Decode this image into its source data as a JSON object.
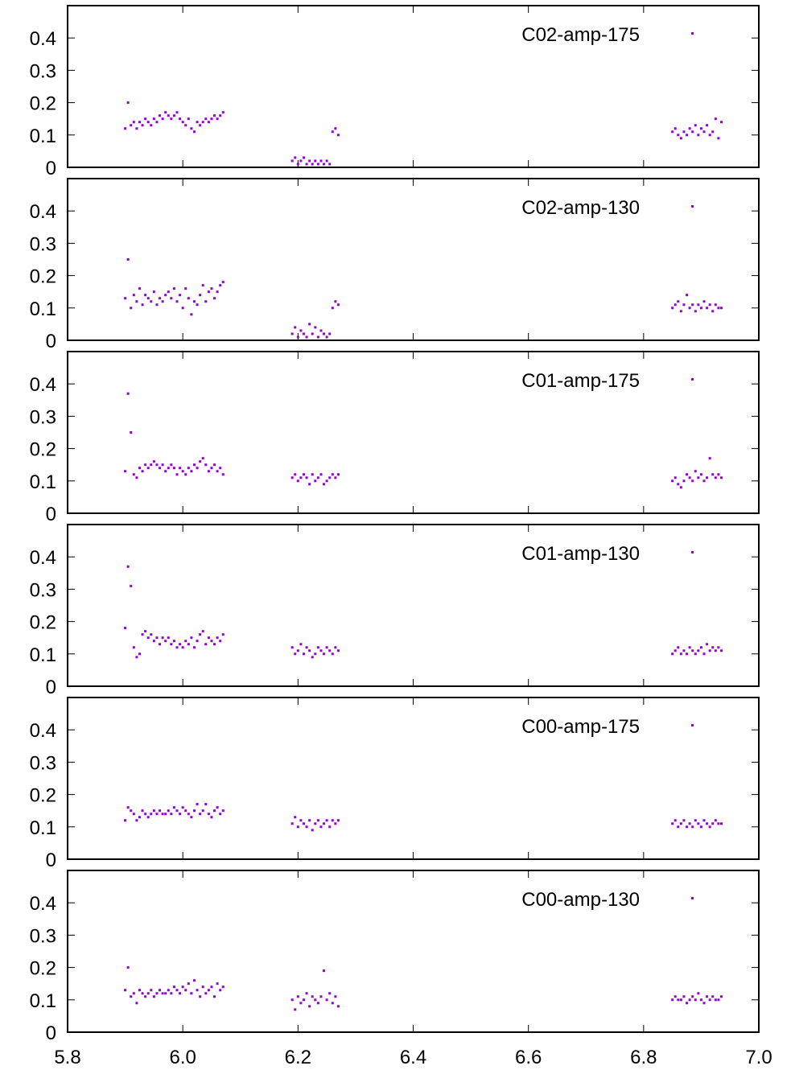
{
  "chart_data": [
    {
      "type": "scatter",
      "legend": "C02-amp-175",
      "legend_position": "top-right",
      "color": "#9400d3",
      "xlim": [
        5.8,
        7.0
      ],
      "ylim": [
        0,
        0.5
      ],
      "y_ticks": [
        "0",
        "0.1",
        "0.2",
        "0.3",
        "0.4"
      ],
      "x": [
        5.9,
        5.905,
        5.91,
        5.915,
        5.92,
        5.925,
        5.93,
        5.935,
        5.94,
        5.945,
        5.95,
        5.955,
        5.96,
        5.965,
        5.97,
        5.975,
        5.98,
        5.985,
        5.99,
        5.995,
        6.0,
        6.005,
        6.01,
        6.015,
        6.02,
        6.025,
        6.03,
        6.035,
        6.04,
        6.045,
        6.05,
        6.055,
        6.06,
        6.065,
        6.07,
        6.19,
        6.195,
        6.2,
        6.205,
        6.21,
        6.215,
        6.22,
        6.225,
        6.23,
        6.235,
        6.24,
        6.245,
        6.25,
        6.255,
        6.26,
        6.265,
        6.27,
        6.85,
        6.855,
        6.86,
        6.865,
        6.87,
        6.875,
        6.88,
        6.885,
        6.89,
        6.895,
        6.9,
        6.905,
        6.91,
        6.915,
        6.92,
        6.925,
        6.93,
        6.935
      ],
      "y": [
        0.12,
        0.2,
        0.13,
        0.14,
        0.12,
        0.14,
        0.13,
        0.15,
        0.14,
        0.13,
        0.15,
        0.14,
        0.16,
        0.15,
        0.17,
        0.16,
        0.15,
        0.16,
        0.17,
        0.15,
        0.14,
        0.13,
        0.15,
        0.12,
        0.11,
        0.14,
        0.13,
        0.14,
        0.15,
        0.14,
        0.15,
        0.16,
        0.15,
        0.16,
        0.17,
        0.02,
        0.03,
        0.01,
        0.02,
        0.03,
        0.01,
        0.02,
        0.01,
        0.02,
        0.01,
        0.02,
        0.01,
        0.02,
        0.01,
        0.11,
        0.12,
        0.1,
        0.11,
        0.12,
        0.1,
        0.09,
        0.11,
        0.1,
        0.12,
        0.11,
        0.13,
        0.1,
        0.12,
        0.11,
        0.13,
        0.1,
        0.11,
        0.15,
        0.09,
        0.14
      ]
    },
    {
      "type": "scatter",
      "legend": "C02-amp-130",
      "legend_position": "top-right",
      "color": "#9400d3",
      "xlim": [
        5.8,
        7.0
      ],
      "ylim": [
        0,
        0.5
      ],
      "y_ticks": [
        "0",
        "0.1",
        "0.2",
        "0.3",
        "0.4"
      ],
      "x": [
        5.9,
        5.905,
        5.91,
        5.915,
        5.92,
        5.925,
        5.93,
        5.935,
        5.94,
        5.945,
        5.95,
        5.955,
        5.96,
        5.965,
        5.97,
        5.975,
        5.98,
        5.985,
        5.99,
        5.995,
        6.0,
        6.005,
        6.01,
        6.015,
        6.02,
        6.025,
        6.03,
        6.035,
        6.04,
        6.045,
        6.05,
        6.055,
        6.06,
        6.065,
        6.07,
        6.19,
        6.195,
        6.2,
        6.205,
        6.21,
        6.215,
        6.22,
        6.225,
        6.23,
        6.235,
        6.24,
        6.245,
        6.25,
        6.255,
        6.26,
        6.265,
        6.27,
        6.85,
        6.855,
        6.86,
        6.865,
        6.87,
        6.875,
        6.88,
        6.885,
        6.89,
        6.895,
        6.9,
        6.905,
        6.91,
        6.915,
        6.92,
        6.925,
        6.93,
        6.935
      ],
      "y": [
        0.13,
        0.25,
        0.1,
        0.14,
        0.12,
        0.16,
        0.11,
        0.14,
        0.13,
        0.12,
        0.15,
        0.11,
        0.13,
        0.12,
        0.14,
        0.15,
        0.13,
        0.16,
        0.12,
        0.14,
        0.1,
        0.16,
        0.13,
        0.08,
        0.12,
        0.11,
        0.14,
        0.17,
        0.12,
        0.15,
        0.16,
        0.13,
        0.15,
        0.17,
        0.18,
        0.02,
        0.04,
        0.01,
        0.03,
        0.02,
        0.01,
        0.05,
        0.02,
        0.04,
        0.01,
        0.03,
        0.02,
        0.01,
        0.02,
        0.1,
        0.12,
        0.11,
        0.1,
        0.11,
        0.12,
        0.09,
        0.11,
        0.14,
        0.1,
        0.11,
        0.09,
        0.11,
        0.1,
        0.12,
        0.1,
        0.11,
        0.09,
        0.11,
        0.1,
        0.1
      ]
    },
    {
      "type": "scatter",
      "legend": "C01-amp-175",
      "legend_position": "top-right",
      "color": "#9400d3",
      "xlim": [
        5.8,
        7.0
      ],
      "ylim": [
        0,
        0.5
      ],
      "y_ticks": [
        "0",
        "0.1",
        "0.2",
        "0.3",
        "0.4"
      ],
      "x": [
        5.9,
        5.905,
        5.91,
        5.915,
        5.92,
        5.925,
        5.93,
        5.935,
        5.94,
        5.945,
        5.95,
        5.955,
        5.96,
        5.965,
        5.97,
        5.975,
        5.98,
        5.985,
        5.99,
        5.995,
        6.0,
        6.005,
        6.01,
        6.015,
        6.02,
        6.025,
        6.03,
        6.035,
        6.04,
        6.045,
        6.05,
        6.055,
        6.06,
        6.065,
        6.07,
        6.19,
        6.195,
        6.2,
        6.205,
        6.21,
        6.215,
        6.22,
        6.225,
        6.23,
        6.235,
        6.24,
        6.245,
        6.25,
        6.255,
        6.26,
        6.265,
        6.27,
        6.85,
        6.855,
        6.86,
        6.865,
        6.87,
        6.875,
        6.88,
        6.885,
        6.89,
        6.895,
        6.9,
        6.905,
        6.91,
        6.915,
        6.92,
        6.925,
        6.93,
        6.935
      ],
      "y": [
        0.13,
        0.37,
        0.25,
        0.12,
        0.11,
        0.14,
        0.13,
        0.15,
        0.14,
        0.15,
        0.16,
        0.15,
        0.14,
        0.15,
        0.13,
        0.14,
        0.15,
        0.14,
        0.12,
        0.14,
        0.13,
        0.12,
        0.14,
        0.13,
        0.15,
        0.14,
        0.16,
        0.17,
        0.15,
        0.13,
        0.14,
        0.15,
        0.13,
        0.14,
        0.12,
        0.11,
        0.12,
        0.1,
        0.11,
        0.12,
        0.11,
        0.09,
        0.12,
        0.1,
        0.11,
        0.12,
        0.09,
        0.1,
        0.11,
        0.12,
        0.11,
        0.12,
        0.1,
        0.11,
        0.09,
        0.08,
        0.1,
        0.12,
        0.11,
        0.1,
        0.13,
        0.11,
        0.12,
        0.1,
        0.11,
        0.17,
        0.12,
        0.11,
        0.12,
        0.11
      ]
    },
    {
      "type": "scatter",
      "legend": "C01-amp-130",
      "legend_position": "top-right",
      "color": "#9400d3",
      "xlim": [
        5.8,
        7.0
      ],
      "ylim": [
        0,
        0.5
      ],
      "y_ticks": [
        "0",
        "0.1",
        "0.2",
        "0.3",
        "0.4"
      ],
      "x": [
        5.9,
        5.905,
        5.91,
        5.915,
        5.92,
        5.925,
        5.93,
        5.935,
        5.94,
        5.945,
        5.95,
        5.955,
        5.96,
        5.965,
        5.97,
        5.975,
        5.98,
        5.985,
        5.99,
        5.995,
        6.0,
        6.005,
        6.01,
        6.015,
        6.02,
        6.025,
        6.03,
        6.035,
        6.04,
        6.045,
        6.05,
        6.055,
        6.06,
        6.065,
        6.07,
        6.19,
        6.195,
        6.2,
        6.205,
        6.21,
        6.215,
        6.22,
        6.225,
        6.23,
        6.235,
        6.24,
        6.245,
        6.25,
        6.255,
        6.26,
        6.265,
        6.27,
        6.85,
        6.855,
        6.86,
        6.865,
        6.87,
        6.875,
        6.88,
        6.885,
        6.89,
        6.895,
        6.9,
        6.905,
        6.91,
        6.915,
        6.92,
        6.925,
        6.93,
        6.935
      ],
      "y": [
        0.18,
        0.37,
        0.31,
        0.12,
        0.09,
        0.1,
        0.16,
        0.17,
        0.15,
        0.16,
        0.14,
        0.15,
        0.13,
        0.15,
        0.14,
        0.15,
        0.13,
        0.14,
        0.12,
        0.13,
        0.12,
        0.14,
        0.13,
        0.15,
        0.12,
        0.14,
        0.16,
        0.17,
        0.13,
        0.15,
        0.14,
        0.13,
        0.15,
        0.14,
        0.16,
        0.12,
        0.1,
        0.11,
        0.13,
        0.1,
        0.12,
        0.11,
        0.09,
        0.1,
        0.12,
        0.11,
        0.1,
        0.12,
        0.11,
        0.1,
        0.12,
        0.11,
        0.1,
        0.11,
        0.12,
        0.1,
        0.11,
        0.1,
        0.12,
        0.11,
        0.1,
        0.11,
        0.12,
        0.1,
        0.13,
        0.11,
        0.12,
        0.11,
        0.12,
        0.11
      ]
    },
    {
      "type": "scatter",
      "legend": "C00-amp-175",
      "legend_position": "top-right",
      "color": "#9400d3",
      "xlim": [
        5.8,
        7.0
      ],
      "ylim": [
        0,
        0.5
      ],
      "y_ticks": [
        "0",
        "0.1",
        "0.2",
        "0.3",
        "0.4"
      ],
      "x": [
        5.9,
        5.905,
        5.91,
        5.915,
        5.92,
        5.925,
        5.93,
        5.935,
        5.94,
        5.945,
        5.95,
        5.955,
        5.96,
        5.965,
        5.97,
        5.975,
        5.98,
        5.985,
        5.99,
        5.995,
        6.0,
        6.005,
        6.01,
        6.015,
        6.02,
        6.025,
        6.03,
        6.035,
        6.04,
        6.045,
        6.05,
        6.055,
        6.06,
        6.065,
        6.07,
        6.19,
        6.195,
        6.2,
        6.205,
        6.21,
        6.215,
        6.22,
        6.225,
        6.23,
        6.235,
        6.24,
        6.245,
        6.25,
        6.255,
        6.26,
        6.265,
        6.27,
        6.85,
        6.855,
        6.86,
        6.865,
        6.87,
        6.875,
        6.88,
        6.885,
        6.89,
        6.895,
        6.9,
        6.905,
        6.91,
        6.915,
        6.92,
        6.925,
        6.93,
        6.935
      ],
      "y": [
        0.12,
        0.16,
        0.15,
        0.14,
        0.12,
        0.13,
        0.15,
        0.14,
        0.13,
        0.14,
        0.15,
        0.14,
        0.15,
        0.14,
        0.14,
        0.15,
        0.14,
        0.16,
        0.15,
        0.14,
        0.16,
        0.15,
        0.14,
        0.13,
        0.15,
        0.17,
        0.14,
        0.15,
        0.17,
        0.14,
        0.13,
        0.15,
        0.16,
        0.14,
        0.15,
        0.11,
        0.13,
        0.1,
        0.12,
        0.11,
        0.1,
        0.12,
        0.09,
        0.11,
        0.12,
        0.1,
        0.11,
        0.12,
        0.1,
        0.12,
        0.11,
        0.12,
        0.11,
        0.12,
        0.1,
        0.11,
        0.12,
        0.1,
        0.11,
        0.1,
        0.12,
        0.11,
        0.1,
        0.12,
        0.11,
        0.1,
        0.11,
        0.12,
        0.11,
        0.11
      ]
    },
    {
      "type": "scatter",
      "legend": "C00-amp-130",
      "legend_position": "top-right",
      "color": "#9400d3",
      "xlim": [
        5.8,
        7.0
      ],
      "ylim": [
        0,
        0.5
      ],
      "y_ticks": [
        "0",
        "0.1",
        "0.2",
        "0.3",
        "0.4"
      ],
      "x_ticks": [
        "5.8",
        "6.0",
        "6.2",
        "6.4",
        "6.6",
        "6.8",
        "7.0"
      ],
      "x": [
        5.9,
        5.905,
        5.91,
        5.915,
        5.92,
        5.925,
        5.93,
        5.935,
        5.94,
        5.945,
        5.95,
        5.955,
        5.96,
        5.965,
        5.97,
        5.975,
        5.98,
        5.985,
        5.99,
        5.995,
        6.0,
        6.005,
        6.01,
        6.015,
        6.02,
        6.025,
        6.03,
        6.035,
        6.04,
        6.045,
        6.05,
        6.055,
        6.06,
        6.065,
        6.07,
        6.19,
        6.195,
        6.2,
        6.205,
        6.21,
        6.215,
        6.22,
        6.225,
        6.23,
        6.235,
        6.24,
        6.245,
        6.25,
        6.255,
        6.26,
        6.265,
        6.27,
        6.85,
        6.855,
        6.86,
        6.865,
        6.87,
        6.875,
        6.88,
        6.885,
        6.89,
        6.895,
        6.9,
        6.905,
        6.91,
        6.915,
        6.92,
        6.925,
        6.93,
        6.935
      ],
      "y": [
        0.13,
        0.2,
        0.11,
        0.12,
        0.09,
        0.13,
        0.12,
        0.11,
        0.12,
        0.13,
        0.11,
        0.12,
        0.13,
        0.12,
        0.12,
        0.13,
        0.12,
        0.14,
        0.13,
        0.12,
        0.14,
        0.13,
        0.15,
        0.12,
        0.16,
        0.13,
        0.11,
        0.14,
        0.12,
        0.13,
        0.14,
        0.11,
        0.15,
        0.13,
        0.14,
        0.1,
        0.07,
        0.11,
        0.09,
        0.1,
        0.12,
        0.08,
        0.11,
        0.1,
        0.09,
        0.11,
        0.19,
        0.1,
        0.12,
        0.09,
        0.11,
        0.08,
        0.1,
        0.11,
        0.1,
        0.1,
        0.11,
        0.09,
        0.1,
        0.11,
        0.1,
        0.12,
        0.1,
        0.09,
        0.11,
        0.1,
        0.11,
        0.1,
        0.1,
        0.11
      ]
    }
  ]
}
